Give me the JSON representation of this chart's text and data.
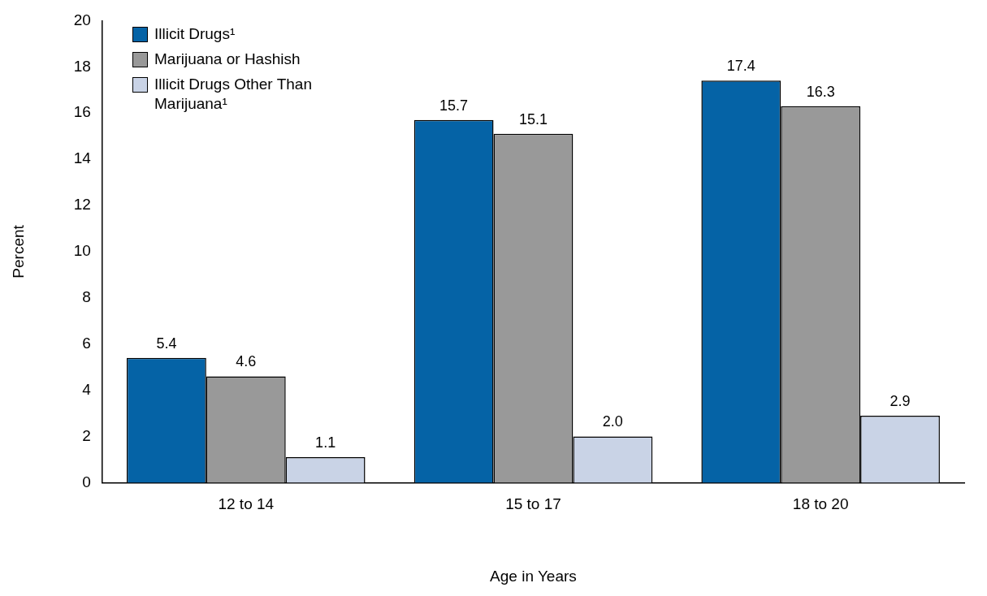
{
  "chart_data": {
    "type": "bar",
    "xlabel": "Age in Years",
    "ylabel": "Percent",
    "categories": [
      "12 to 14",
      "15 to 17",
      "18 to 20"
    ],
    "series": [
      {
        "name": "Illicit Drugs¹",
        "color": "#0563a6",
        "values": [
          5.4,
          15.7,
          17.4
        ],
        "value_labels": [
          "5.4",
          "15.7",
          "17.4"
        ]
      },
      {
        "name": "Marijuana or Hashish",
        "color": "#999999",
        "values": [
          4.6,
          15.1,
          16.3
        ],
        "value_labels": [
          "4.6",
          "15.1",
          "16.3"
        ]
      },
      {
        "name": "Illicit Drugs Other Than Marijuana¹",
        "color": "#c9d3e6",
        "values": [
          1.1,
          2.0,
          2.9
        ],
        "value_labels": [
          "1.1",
          "2.0",
          "2.9"
        ]
      }
    ],
    "ylim": [
      0,
      20
    ],
    "yticks": [
      0,
      2,
      4,
      6,
      8,
      10,
      12,
      14,
      16,
      18,
      20
    ],
    "grid": false,
    "legend": "top left"
  }
}
